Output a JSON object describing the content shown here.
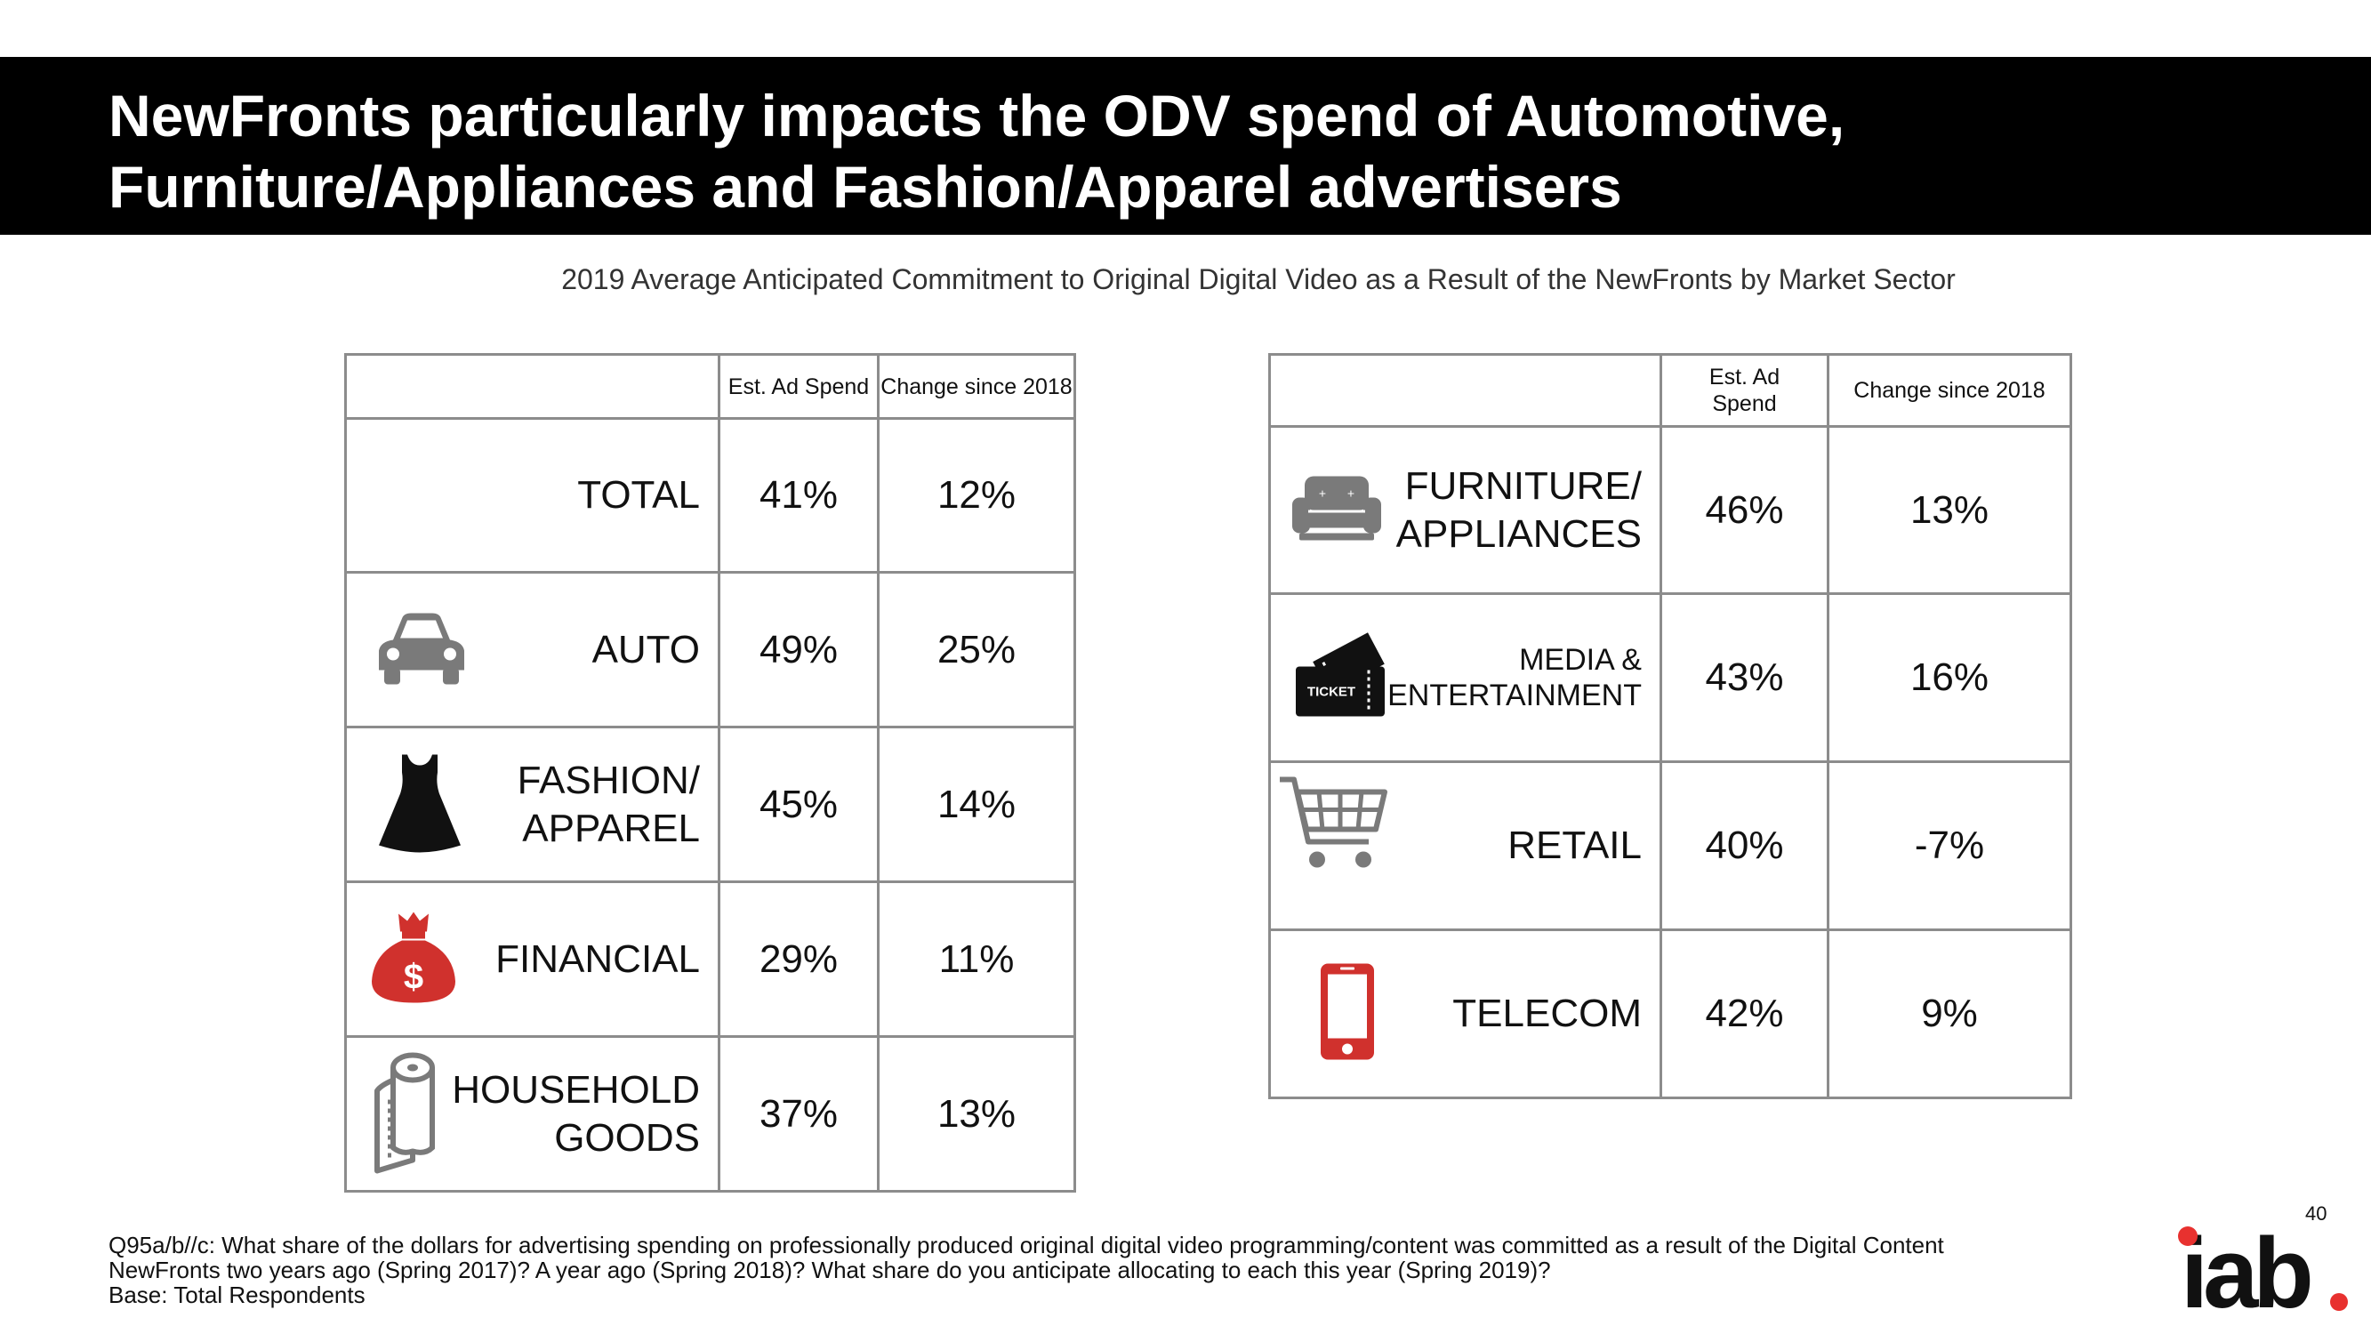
{
  "header": {
    "title_line1": "NewFronts particularly impacts the ODV spend of Automotive,",
    "title_line2": "Furniture/Appliances and Fashion/Apparel advertisers"
  },
  "subtitle": "2019 Average Anticipated Commitment to Original Digital Video as a Result of the NewFronts by Market Sector",
  "left_table": {
    "col_spend": "Est. Ad Spend",
    "col_change": "Change since 2018",
    "rows": [
      {
        "label1": "TOTAL",
        "label2": "",
        "spend": "41%",
        "change": "12%",
        "icon": "none"
      },
      {
        "label1": "AUTO",
        "label2": "",
        "spend": "49%",
        "change": "25%",
        "icon": "car-icon"
      },
      {
        "label1": "FASHION/",
        "label2": "APPAREL",
        "spend": "45%",
        "change": "14%",
        "icon": "dress-icon"
      },
      {
        "label1": "FINANCIAL",
        "label2": "",
        "spend": "29%",
        "change": "11%",
        "icon": "money-bag-icon"
      },
      {
        "label1": "HOUSEHOLD",
        "label2": "GOODS",
        "spend": "37%",
        "change": "13%",
        "icon": "paper-towel-icon"
      }
    ]
  },
  "right_table": {
    "col_spend_line1": "Est. Ad",
    "col_spend_line2": "Spend",
    "col_change": "Change since 2018",
    "rows": [
      {
        "label1": "FURNITURE/",
        "label2": "APPLIANCES",
        "spend": "46%",
        "change": "13%",
        "icon": "sofa-icon"
      },
      {
        "label1": "MEDIA &",
        "label2": "ENTERTAINMENT",
        "spend": "43%",
        "change": "16%",
        "icon": "ticket-icon",
        "icon_text": "TICKET"
      },
      {
        "label1": "RETAIL",
        "label2": "",
        "spend": "40%",
        "change": "-7%",
        "icon": "shopping-cart-icon"
      },
      {
        "label1": "TELECOM",
        "label2": "",
        "spend": "42%",
        "change": "9%",
        "icon": "mobile-phone-icon"
      }
    ]
  },
  "footnote": {
    "line1": "Q95a/b//c: What share of the dollars for advertising spending on professionally produced original digital video programming/content was committed as a result of the Digital Content",
    "line2": "NewFronts two years ago (Spring 2017)?  A year ago (Spring 2018)? What share do you anticipate allocating to each this year (Spring 2019)?",
    "line3": "Base:  Total Respondents"
  },
  "page_number": "40",
  "logo": {
    "text": "iab",
    "accent_color": "#e8312f"
  },
  "colors": {
    "icon_gray": "#7a7a7a",
    "icon_red": "#d0312d",
    "icon_dark": "#111111"
  }
}
